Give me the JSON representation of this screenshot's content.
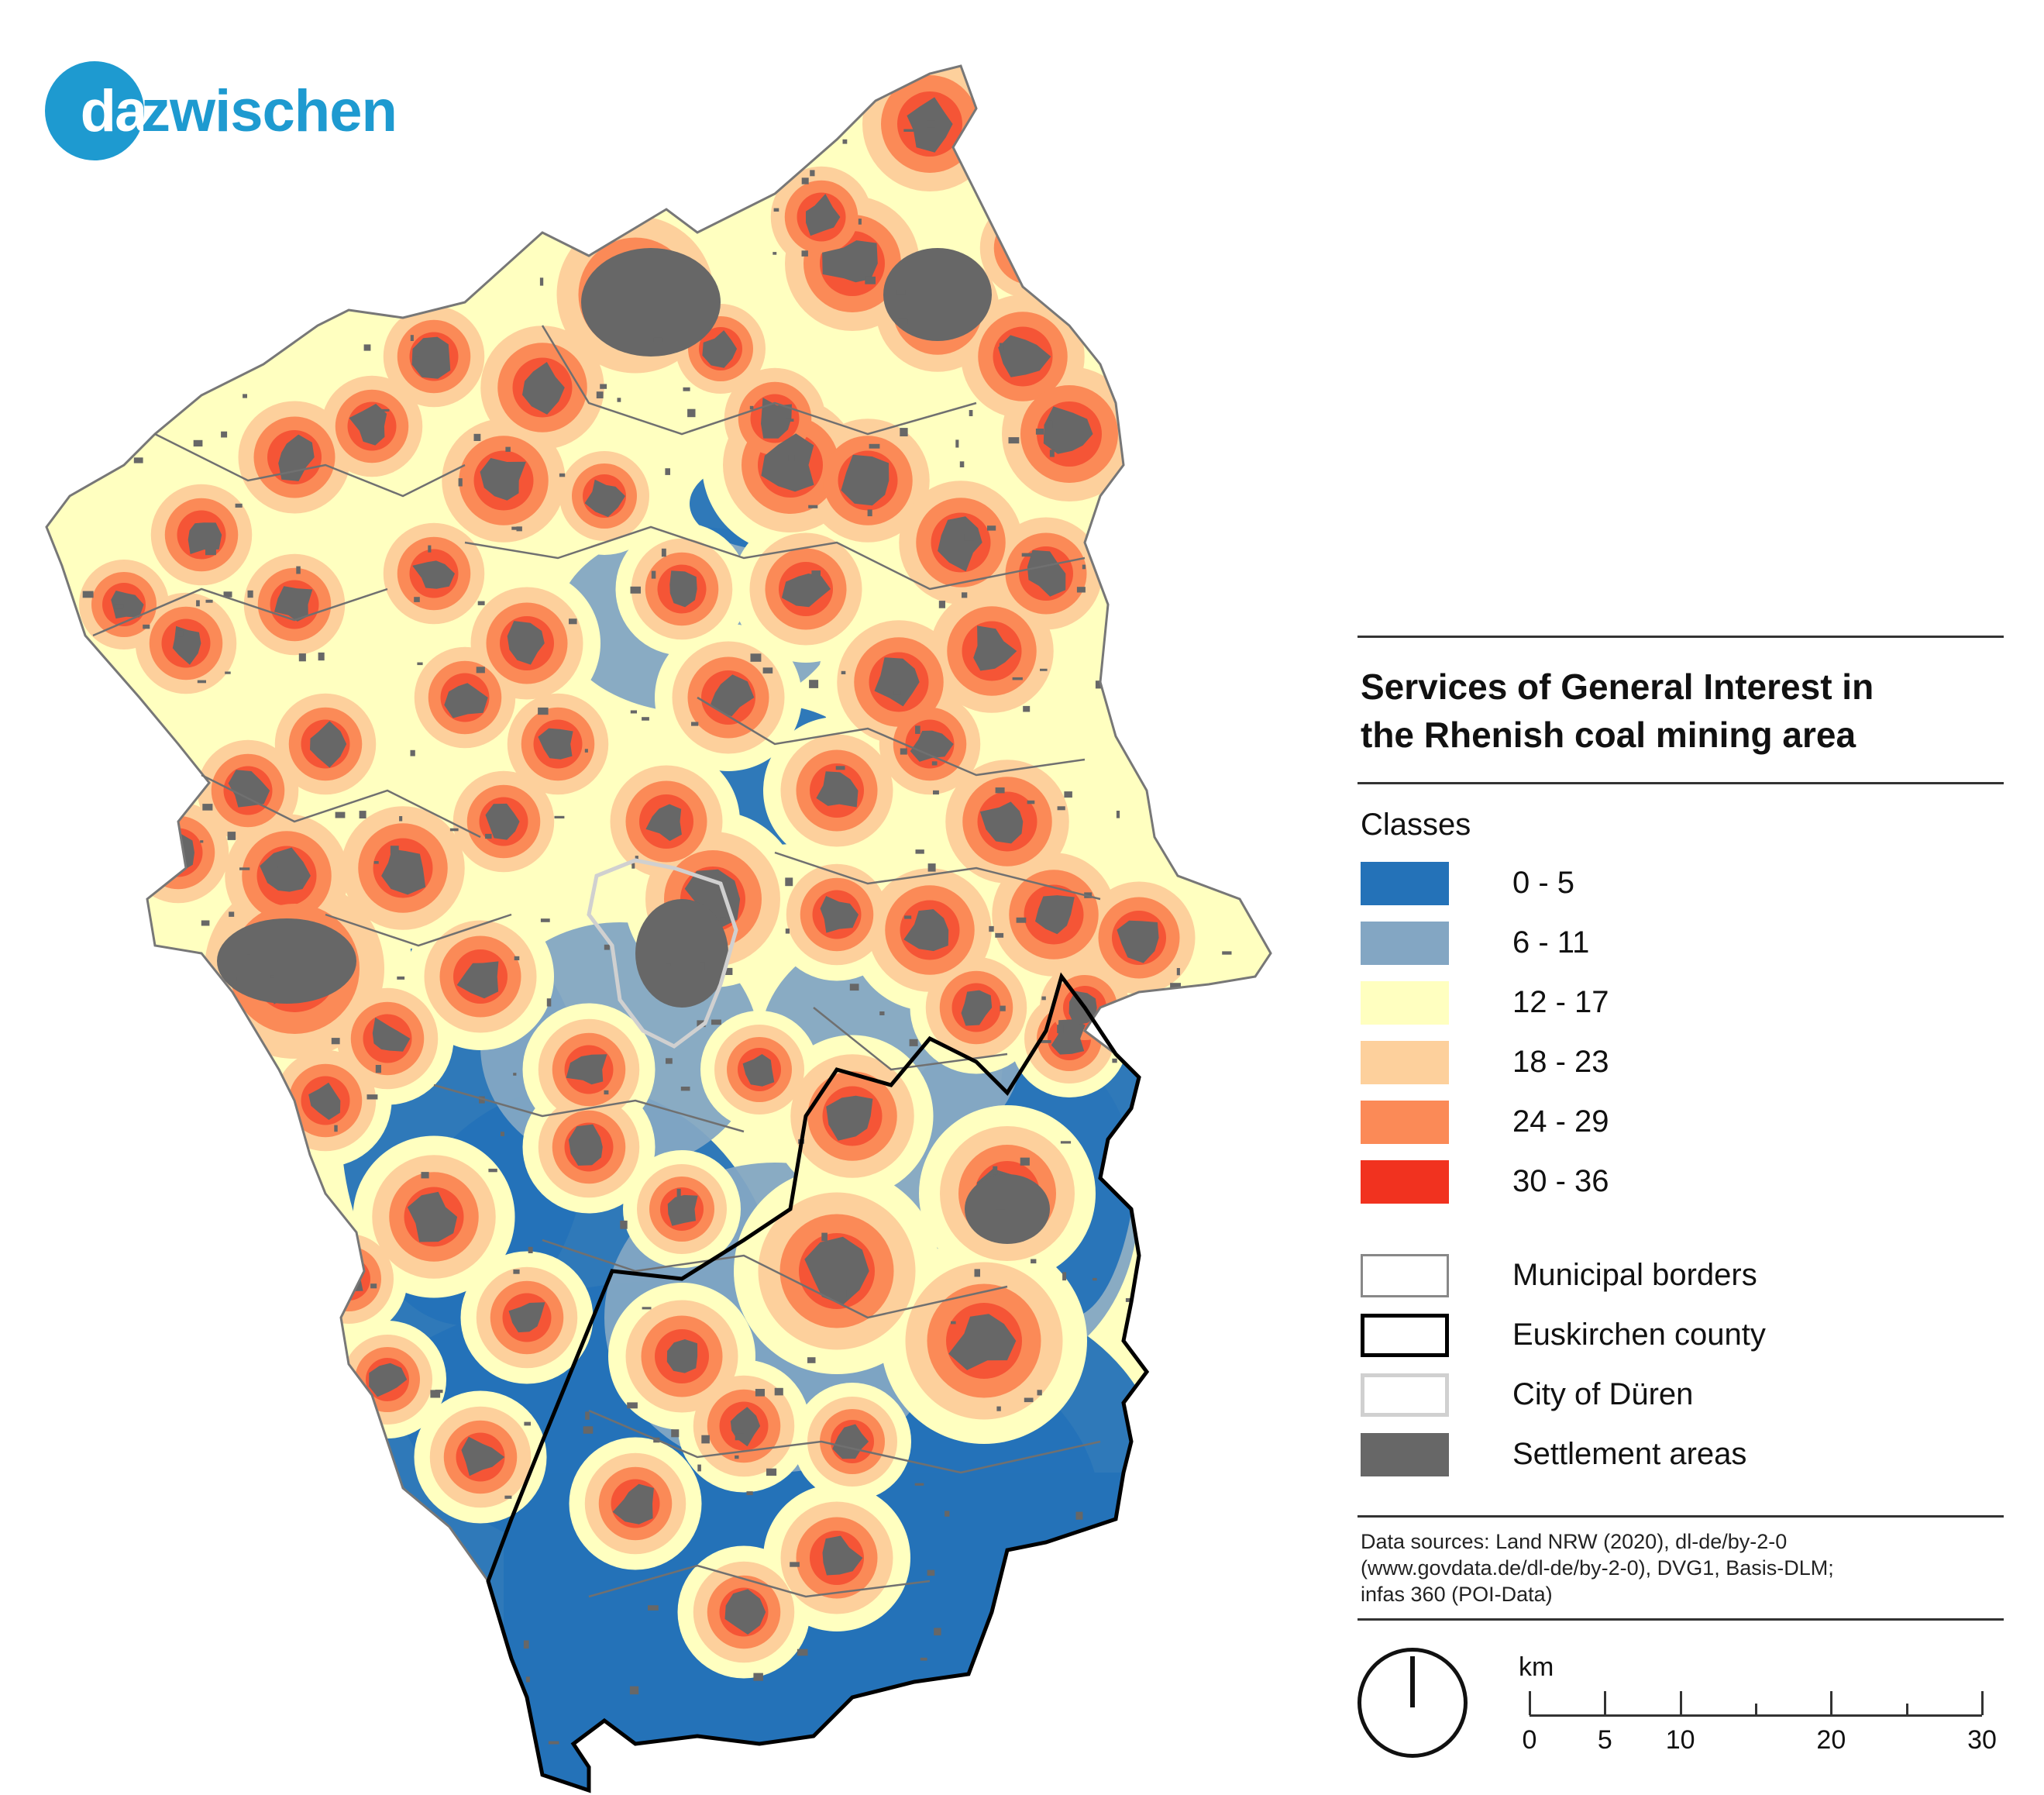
{
  "logo": {
    "part1": "da",
    "part2": "zwischen"
  },
  "legend": {
    "title_line1": "Services of General Interest in",
    "title_line2": "the Rhenish coal mining area",
    "classes_label": "Classes",
    "classes": [
      {
        "label": "0 - 5",
        "color": "#2472b8"
      },
      {
        "label": "6 - 11",
        "color": "#83a6c3"
      },
      {
        "label": "12 - 17",
        "color": "#ffffc0"
      },
      {
        "label": "18 - 23",
        "color": "#fdd09c"
      },
      {
        "label": "24 - 29",
        "color": "#fb8a57"
      },
      {
        "label": "30 - 36",
        "color": "#f1321f"
      }
    ],
    "layers": [
      {
        "label": "Municipal borders",
        "fill": "#ffffff",
        "border": "#888888"
      },
      {
        "label": "Euskirchen county",
        "fill": "#ffffff",
        "border": "#000000"
      },
      {
        "label": "City of Düren",
        "fill": "#ffffff",
        "border": "#d0d0d0"
      },
      {
        "label": "Settlement areas",
        "fill": "#676767",
        "border": "#676767"
      }
    ],
    "sources_line1": "Data sources: Land NRW (2020), dl-de/by-2-0",
    "sources_line2": "(www.govdata.de/dl-de/by-2-0), DVG1, Basis-DLM;",
    "sources_line3": "infas 360 (POI-Data)"
  },
  "scalebar": {
    "unit": "km",
    "labels": [
      "0",
      "5",
      "10",
      "20",
      "30"
    ],
    "label_values": [
      0,
      5,
      10,
      20,
      30
    ],
    "minor_values": [
      15,
      25
    ],
    "max": 30
  }
}
